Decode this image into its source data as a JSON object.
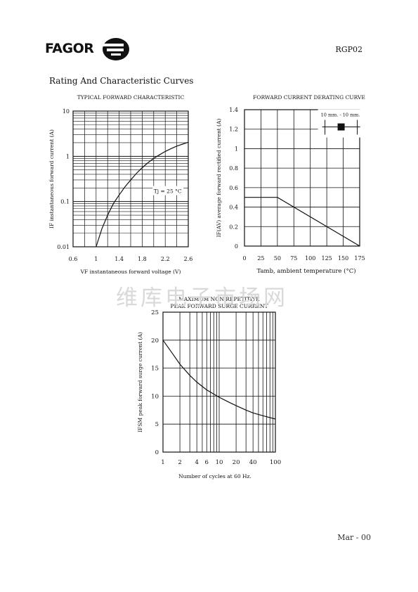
{
  "header": {
    "brand": "FAGOR",
    "part_number": "RGP02"
  },
  "section_title": "Rating And Characteristic Curves",
  "watermark": "维库电子市场网",
  "footer": "Mar - 00",
  "chart_data": [
    {
      "type": "line",
      "title": "TYPICAL FORWARD CHARACTERISTIC",
      "xlabel": "VF instantaneous forward voltage (V)",
      "ylabel": "IF instantaneous forward current (A)",
      "x_scale": "linear",
      "y_scale": "log",
      "xlim": [
        0.6,
        2.6
      ],
      "ylim": [
        0.01,
        10
      ],
      "x_ticks": [
        "0.6",
        "1",
        "1.4",
        "1.8",
        "2.2",
        "2.6"
      ],
      "y_ticks": [
        "0.01",
        "0.1",
        "1",
        "10"
      ],
      "annotation": "Tj = 25 °C",
      "grid": true,
      "series": [
        {
          "x": [
            1.0,
            1.1,
            1.2,
            1.3,
            1.4,
            1.5,
            1.6,
            1.7,
            1.8,
            1.9,
            2.0,
            2.1,
            2.2,
            2.3,
            2.4,
            2.5,
            2.6
          ],
          "y": [
            0.01,
            0.025,
            0.05,
            0.09,
            0.14,
            0.21,
            0.3,
            0.42,
            0.56,
            0.72,
            0.9,
            1.08,
            1.28,
            1.48,
            1.68,
            1.86,
            2.05
          ]
        }
      ]
    },
    {
      "type": "line",
      "title": "FORWARD CURRENT DERATING CURVE",
      "xlabel": "Tamb, ambient temperature (°C)",
      "ylabel": "IF(AV) average forward rectified current (A)",
      "xlim": [
        0,
        175
      ],
      "ylim": [
        0,
        1.4
      ],
      "x_ticks": [
        "0",
        "25",
        "50",
        "75",
        "100",
        "125",
        "150",
        "175"
      ],
      "y_ticks": [
        "0",
        "0.2",
        "0.4",
        "0.6",
        "0.8",
        "1",
        "1.2",
        "1.4"
      ],
      "inset_label": "10 mm. - 10 mm.",
      "grid": true,
      "series": [
        {
          "x": [
            0,
            50,
            175
          ],
          "y": [
            0.5,
            0.5,
            0.0
          ]
        }
      ]
    },
    {
      "type": "line",
      "title": "MAXIMUM NON REPETITIVE",
      "subtitle": "PEAK FORWARD SURGE CURRENT",
      "xlabel": "Number of cycles at 60 Hz.",
      "ylabel": "IFSM peak forward surge current (A)",
      "x_scale": "log",
      "xlim": [
        1,
        100
      ],
      "ylim": [
        0,
        25
      ],
      "x_ticks": [
        "1",
        "2",
        "4",
        "6",
        "10",
        "20",
        "40",
        "100"
      ],
      "y_ticks": [
        "0",
        "5",
        "10",
        "15",
        "20",
        "25"
      ],
      "grid": true,
      "series": [
        {
          "x": [
            1,
            1.5,
            2,
            3,
            4,
            6,
            10,
            15,
            20,
            30,
            40,
            60,
            100
          ],
          "y": [
            20,
            17.5,
            15.7,
            13.7,
            12.5,
            11.1,
            9.8,
            8.9,
            8.3,
            7.5,
            7.0,
            6.5,
            5.9
          ]
        }
      ]
    }
  ]
}
